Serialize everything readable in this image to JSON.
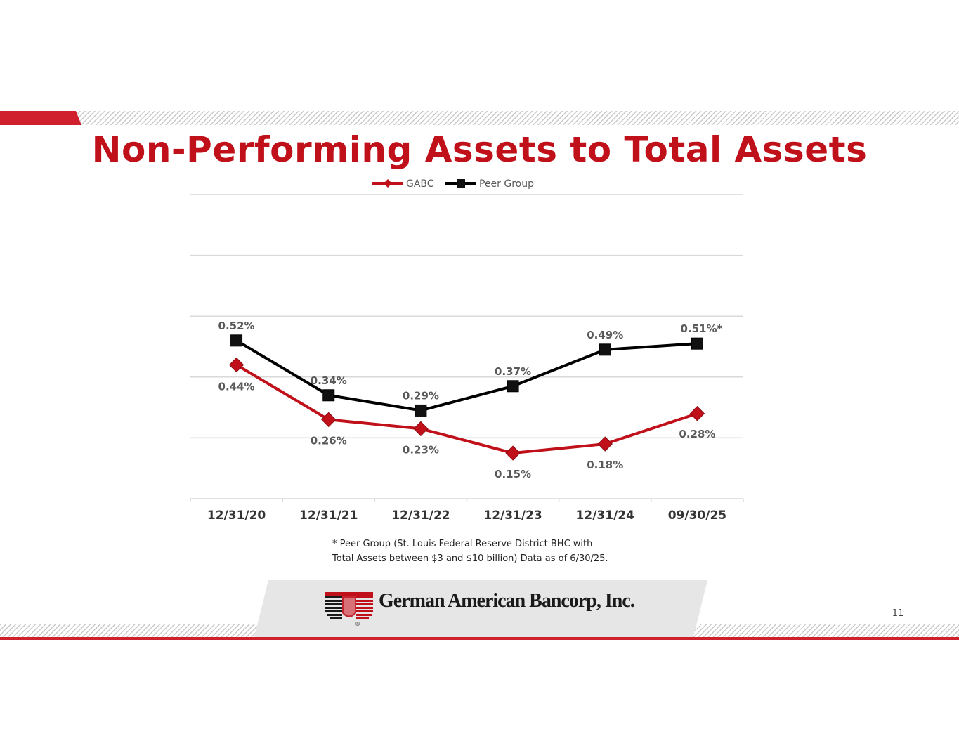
{
  "slide": {
    "title": "Non-Performing Assets to Total Assets",
    "page_number": "11",
    "footnote_line1": "* Peer Group (St. Louis Federal Reserve District BHC with",
    "footnote_line2": "Total Assets between $3 and $10 billion) Data as of 6/30/25.",
    "company_name": "German American Bancorp, Inc.",
    "logo_registered_mark": "®"
  },
  "colors": {
    "brand_red": "#c0101a",
    "accent_red": "#d0202d",
    "peer_black": "#000000",
    "grid": "#d9d9d9",
    "label_gray": "#595959"
  },
  "chart_data": {
    "type": "line",
    "title": "",
    "xlabel": "",
    "ylabel": "",
    "categories": [
      "12/31/20",
      "12/31/21",
      "12/31/22",
      "12/31/23",
      "12/31/24",
      "09/30/25"
    ],
    "ylim": [
      0,
      1.0
    ],
    "grid": true,
    "legend_position": "top-center",
    "series": [
      {
        "name": "GABC",
        "color": "#c0101a",
        "marker": "diamond",
        "values": [
          0.44,
          0.26,
          0.23,
          0.15,
          0.18,
          0.28
        ],
        "labels": [
          "0.44%",
          "0.26%",
          "0.23%",
          "0.15%",
          "0.18%",
          "0.28%"
        ]
      },
      {
        "name": "Peer Group",
        "color": "#000000",
        "marker": "square",
        "values": [
          0.52,
          0.34,
          0.29,
          0.37,
          0.49,
          0.51
        ],
        "labels": [
          "0.52%",
          "0.34%",
          "0.29%",
          "0.37%",
          "0.49%",
          "0.51%*"
        ]
      }
    ]
  }
}
